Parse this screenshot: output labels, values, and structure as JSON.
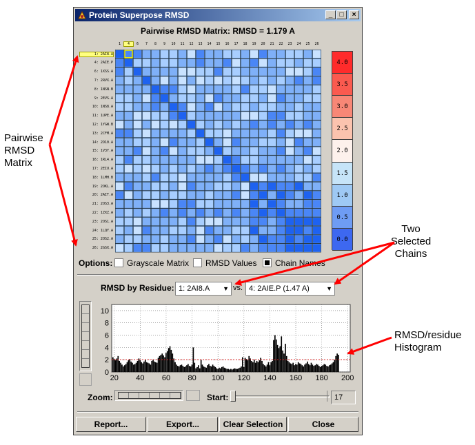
{
  "window": {
    "title": "Protein Superpose RMSD",
    "min_label": "_",
    "max_label": "□",
    "close_label": "×"
  },
  "matrix": {
    "header": "Pairwise RMSD Matrix:  RMSD = 1.179 A",
    "row_labels": [
      "1: 2AI8.A",
      "4: 2AIE.P",
      "6: 1XSS.A",
      "7: 2RVX.A",
      "8: 1NSN.B",
      "9: 2EVS.A",
      "10: 1NS8.A",
      "11: 1UPE.A",
      "12: 1YGW.B",
      "13: 2CFM.A",
      "14: 2D10.A",
      "15: 1V3Y.A",
      "16: 1RL4.A",
      "17: 2EIU.A",
      "18: 1LMH.B",
      "19: 2OKL.A",
      "20: 2AIT.A",
      "21: 2OS3.A",
      "22: 1ZXZ.A",
      "23: 2OS1.A",
      "24: 1LQY.A",
      "25: 2OS2.A",
      "26: 2GSX.A"
    ],
    "col_labels": [
      "1",
      "4",
      "6",
      "7",
      "8",
      "9",
      "10",
      "11",
      "12",
      "13",
      "14",
      "15",
      "16",
      "17",
      "18",
      "19",
      "20",
      "21",
      "22",
      "23",
      "24",
      "25",
      "26"
    ],
    "colors": {
      "c1": "#1e62f0",
      "c2": "#4a86f6",
      "c3": "#7fb0f8",
      "c4": "#a8ceff",
      "c5": "#c9e2ff"
    },
    "selected_row": "1",
    "selected_col": "4"
  },
  "scale": {
    "labels": [
      "4.0",
      "3.5",
      "3.0",
      "2.5",
      "2.0",
      "1.5",
      "1.0",
      "0.5",
      "0.0"
    ],
    "colors": [
      "#ff2b2b",
      "#fa5a4f",
      "#f88776",
      "#fbc3ae",
      "#fdf1ec",
      "#c6e4f8",
      "#9ec9f4",
      "#6e9cf4",
      "#3d68f0"
    ]
  },
  "options": {
    "label": "Options:",
    "grayscale": {
      "label": "Grayscale Matrix",
      "checked": false
    },
    "rmsd_values": {
      "label": "RMSD Values",
      "checked": false
    },
    "chain_names": {
      "label": "Chain Names",
      "checked": true
    }
  },
  "residue": {
    "label": "RMSD by Residue:",
    "chain_a": "1: 2AI8.A",
    "vs_label": "vs.",
    "chain_b": "4: 2AIE.P (1.47 A)"
  },
  "histogram": {
    "y_ticks": [
      "0",
      "2",
      "4",
      "6",
      "8",
      "10"
    ],
    "x_ticks": [
      "20",
      "40",
      "60",
      "80",
      "100",
      "120",
      "140",
      "160",
      "180",
      "200"
    ],
    "ylim": [
      0,
      11
    ],
    "xlim": [
      18,
      202
    ],
    "threshold": 2,
    "values": [
      2.4,
      2.1,
      1.9,
      2.2,
      2.6,
      1.8,
      1.5,
      1.2,
      0.9,
      1.1,
      1.3,
      1.6,
      1.9,
      2.1,
      1.7,
      1.5,
      1.2,
      1.3,
      1.5,
      1.8,
      2.2,
      1.9,
      1.6,
      1.4,
      1.7,
      2.0,
      1.6,
      1.5,
      1.4,
      1.2,
      1.8,
      2.0,
      1.7,
      1.6,
      1.5,
      2.3,
      2.6,
      2.8,
      3.0,
      2.7,
      2.4,
      3.1,
      3.4,
      3.9,
      4.2,
      3.6,
      3.0,
      2.2,
      1.6,
      1.2,
      1.0,
      0.9,
      1.1,
      1.2,
      1.0,
      0.8,
      0.9,
      1.1,
      1.3,
      1.0,
      0.9,
      1.2,
      4.0,
      1.5,
      0.6,
      0.8,
      1.1,
      0.6,
      2.0,
      1.2,
      0.9,
      0.8,
      0.7,
      1.1,
      1.3,
      1.0,
      0.9,
      1.2,
      1.0,
      0.8,
      0.6,
      0.5,
      0.7,
      0.6,
      0.8,
      0.9,
      0.7,
      0.6,
      0.5,
      0.5,
      0.4,
      0.5,
      0.4,
      0.5,
      0.6,
      0.5,
      0.5,
      0.6,
      0.7,
      0.9,
      2.4,
      0.8,
      2.3,
      2.1,
      1.9,
      2.6,
      2.2,
      1.8,
      1.6,
      2.0,
      1.5,
      1.8,
      1.6,
      1.9,
      2.3,
      1.8,
      1.3,
      1.1,
      0.9,
      1.2,
      1.6,
      1.1,
      1.6,
      1.8,
      5.2,
      6.0,
      5.3,
      4.4,
      3.9,
      4.2,
      5.8,
      3.5,
      3.0,
      4.6,
      2.6,
      1.8,
      1.6,
      1.4,
      1.3,
      1.5,
      1.1,
      1.3,
      1.2,
      1.6,
      1.4,
      1.3,
      1.1,
      0.9,
      1.2,
      1.4,
      1.7,
      1.3,
      1.1,
      1.5,
      1.2,
      1.0,
      1.1,
      1.3,
      1.2,
      1.0,
      0.8,
      1.0,
      1.1,
      1.3,
      1.2,
      1.0,
      0.9,
      1.1,
      1.2,
      1.4,
      1.6,
      2.0,
      2.6,
      3.0,
      2.8
    ],
    "zoom_label": "Zoom:",
    "start_label": "Start:",
    "start_value": "17"
  },
  "buttons": {
    "report": "Report...",
    "export": "Export...",
    "clear": "Clear Selection",
    "close": "Close"
  },
  "annotations": {
    "matrix_note": [
      "Pairwise",
      "RMSD",
      "Matrix"
    ],
    "chains_note": [
      "Two",
      "Selected",
      "Chains"
    ],
    "histogram_note": [
      "RMSD/residue",
      "Histogram"
    ],
    "arrow_color": "#ff0000"
  }
}
